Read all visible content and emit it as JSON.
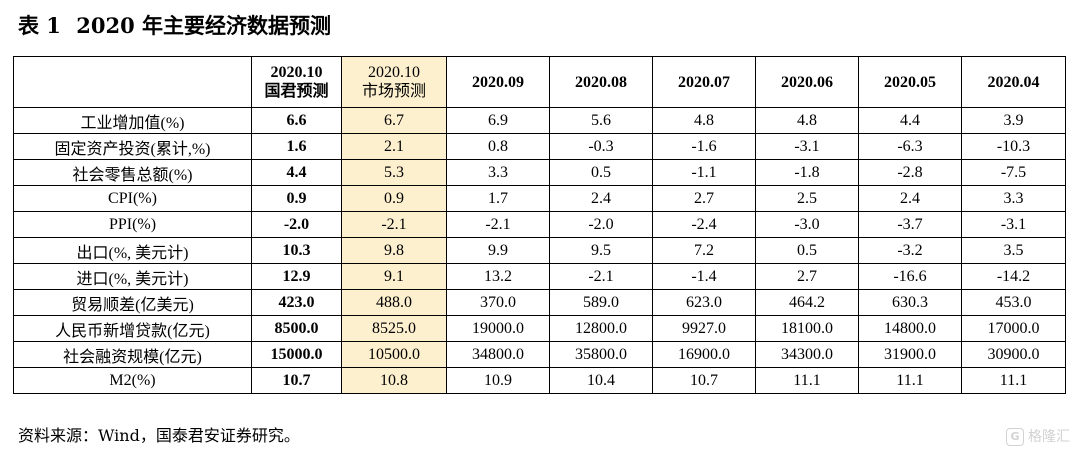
{
  "title": {
    "label": "表 1",
    "text": "2020 年主要经济数据预测"
  },
  "table": {
    "headers": [
      {
        "line1": "",
        "line2": ""
      },
      {
        "line1": "2020.10",
        "line2": "国君预测"
      },
      {
        "line1": "2020.10",
        "line2": "市场预测"
      },
      {
        "line1": "2020.09",
        "line2": ""
      },
      {
        "line1": "2020.08",
        "line2": ""
      },
      {
        "line1": "2020.07",
        "line2": ""
      },
      {
        "line1": "2020.06",
        "line2": ""
      },
      {
        "line1": "2020.05",
        "line2": ""
      },
      {
        "line1": "2020.04",
        "line2": ""
      }
    ],
    "rows": [
      {
        "label": "工业增加值(%)",
        "values": [
          "6.6",
          "6.7",
          "6.9",
          "5.6",
          "4.8",
          "4.8",
          "4.4",
          "3.9"
        ]
      },
      {
        "label": "固定资产投资(累计,%)",
        "values": [
          "1.6",
          "2.1",
          "0.8",
          "-0.3",
          "-1.6",
          "-3.1",
          "-6.3",
          "-10.3"
        ]
      },
      {
        "label": "社会零售总额(%)",
        "values": [
          "4.4",
          "5.3",
          "3.3",
          "0.5",
          "-1.1",
          "-1.8",
          "-2.8",
          "-7.5"
        ]
      },
      {
        "label": "CPI(%)",
        "values": [
          "0.9",
          "0.9",
          "1.7",
          "2.4",
          "2.7",
          "2.5",
          "2.4",
          "3.3"
        ]
      },
      {
        "label": "PPI(%)",
        "values": [
          "-2.0",
          "-2.1",
          "-2.1",
          "-2.0",
          "-2.4",
          "-3.0",
          "-3.7",
          "-3.1"
        ]
      },
      {
        "label": "出口(%, 美元计)",
        "values": [
          "10.3",
          "9.8",
          "9.9",
          "9.5",
          "7.2",
          "0.5",
          "-3.2",
          "3.5"
        ]
      },
      {
        "label": "进口(%, 美元计)",
        "values": [
          "12.9",
          "9.1",
          "13.2",
          "-2.1",
          "-1.4",
          "2.7",
          "-16.6",
          "-14.2"
        ]
      },
      {
        "label": "贸易顺差(亿美元)",
        "values": [
          "423.0",
          "488.0",
          "370.0",
          "589.0",
          "623.0",
          "464.2",
          "630.3",
          "453.0"
        ]
      },
      {
        "label": "人民币新增贷款(亿元)",
        "values": [
          "8500.0",
          "8525.0",
          "19000.0",
          "12800.0",
          "9927.0",
          "18100.0",
          "14800.0",
          "17000.0"
        ]
      },
      {
        "label": "社会融资规模(亿元)",
        "values": [
          "15000.0",
          "10500.0",
          "34800.0",
          "35800.0",
          "16900.0",
          "34300.0",
          "31900.0",
          "30900.0"
        ]
      },
      {
        "label": "M2(%)",
        "values": [
          "10.7",
          "10.8",
          "10.9",
          "10.4",
          "10.7",
          "11.1",
          "11.1",
          "11.1"
        ]
      }
    ]
  },
  "source": "资料来源：Wind，国泰君安证券研究。",
  "watermark": {
    "icon": "G",
    "text": "格隆汇"
  },
  "colors": {
    "highlight": "#fdf0cf"
  }
}
